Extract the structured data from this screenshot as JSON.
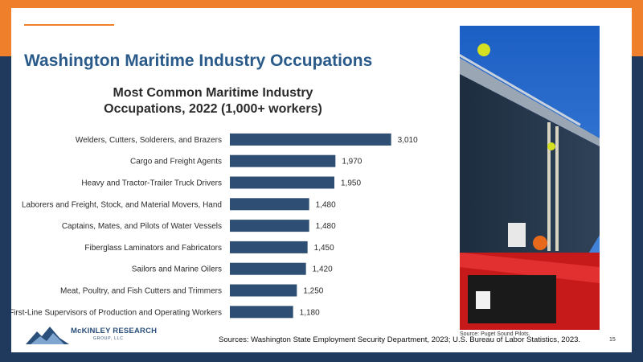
{
  "slide": {
    "title": "Washington Maritime Industry Occupations",
    "photo_source": "Source: Puget Sound Pilots.",
    "sources": "Sources: Washington State Employment Security Department, 2023; U.S. Bureau of Labor Statistics, 2023.",
    "page_number": "15",
    "logo_name": "McKINLEY RESEARCH",
    "logo_sub": "GROUP, LLC"
  },
  "colors": {
    "orange": "#f07f2b",
    "navy": "#1f3a5c",
    "title_blue": "#2a5a8a",
    "bar": "#2e4f73"
  },
  "chart_data": {
    "type": "bar",
    "orientation": "horizontal",
    "title_lines": [
      "Most Common Maritime Industry",
      "Occupations, 2022 (1,000+ workers)"
    ],
    "categories": [
      "Welders, Cutters, Solderers, and Brazers",
      "Cargo and Freight Agents",
      "Heavy and Tractor-Trailer Truck Drivers",
      "Laborers and Freight, Stock, and Material Movers, Hand",
      "Captains, Mates, and Pilots of Water Vessels",
      "Fiberglass Laminators and Fabricators",
      "Sailors and Marine Oilers",
      "Meat, Poultry, and Fish Cutters and Trimmers",
      "First-Line Supervisors of Production and Operating Workers"
    ],
    "values": [
      3010,
      1970,
      1950,
      1480,
      1480,
      1450,
      1420,
      1250,
      1180
    ],
    "value_labels": [
      "3,010",
      "1,970",
      "1,950",
      "1,480",
      "1,480",
      "1,450",
      "1,420",
      "1,250",
      "1,180"
    ],
    "xlim": [
      0,
      3600
    ]
  }
}
